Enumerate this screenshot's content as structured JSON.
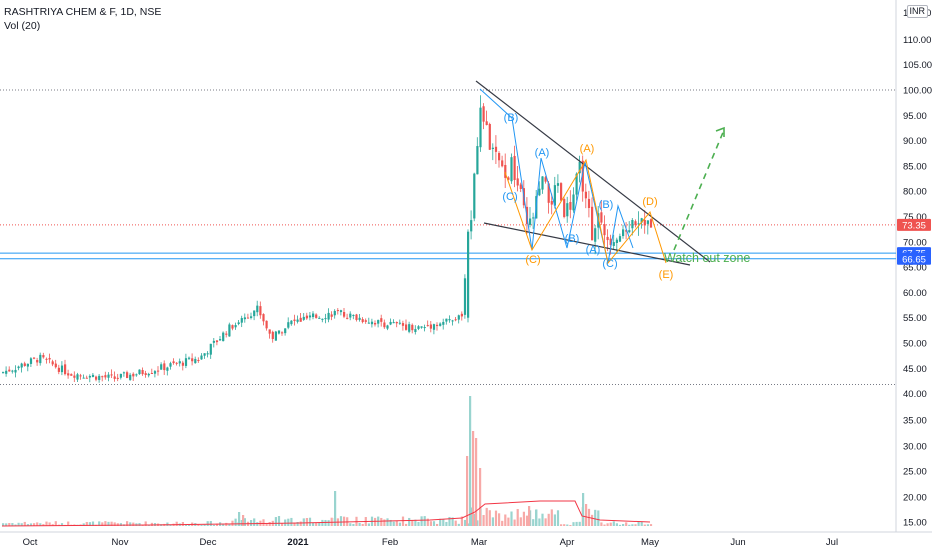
{
  "header": {
    "symbol": "RASHTRIYA CHEM & F, 1D, NSE",
    "volume_label": "Vol (20)"
  },
  "currency": "INR",
  "price_tags": [
    {
      "value": "73.35",
      "color": "#ef5350"
    },
    {
      "value": "67.75",
      "color": "#2962ff"
    },
    {
      "value": "66.65",
      "color": "#2962ff"
    }
  ],
  "colors": {
    "up": "#26a69a",
    "down": "#ef5350",
    "vol_up": "#99d4cf",
    "vol_down": "#f7a9a7",
    "trendline": "#363a45",
    "wave_blue": "#2196f3",
    "wave_orange": "#ff9800",
    "projection": "#4caf50",
    "hline": "#2196f3",
    "ma": "#f23645"
  },
  "chart_data": {
    "type": "candlestick",
    "title": "RASHTRIYA CHEM & F, 1D, NSE",
    "price_ticks": [
      "110.00",
      "105.00",
      "100.00",
      "95.00",
      "90.00",
      "85.00",
      "80.00",
      "75.00",
      "70.00",
      "65.00",
      "60.00",
      "55.00",
      "50.00",
      "45.00",
      "40.00"
    ],
    "volume_ticks": [
      "35.00",
      "30.00",
      "25.00",
      "20.00",
      "15.00"
    ],
    "price_axis_top": "115.00",
    "x_ticks": [
      "Oct",
      "Nov",
      "Dec",
      "2021",
      "Feb",
      "Mar",
      "Apr",
      "May",
      "Jun",
      "Jul"
    ],
    "ylim": [
      40,
      116
    ],
    "horizontal_lines": [
      67.75,
      66.65
    ],
    "dotted_levels": [
      100.0,
      41.8
    ],
    "last_price": 73.35,
    "volume_ma_label": "MA",
    "wave_labels": [
      "(B)",
      "(A)",
      "(C)",
      "(C)",
      "(A)",
      "(B)",
      "(B)",
      "(A)",
      "(C)",
      "(D)",
      "(E)"
    ],
    "annotation": "Watch out zone"
  }
}
